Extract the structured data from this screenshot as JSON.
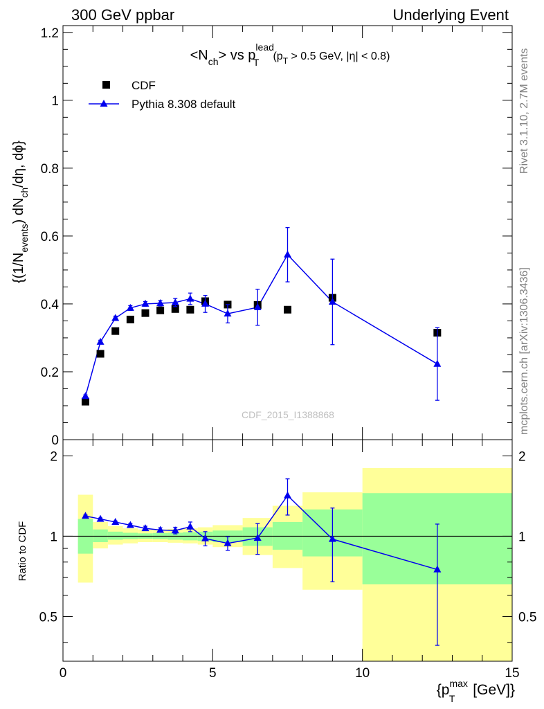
{
  "header": {
    "left_title": "300 GeV ppbar",
    "right_title": "Underlying Event"
  },
  "side_text": {
    "rivet": "Rivet 3.1.10,  2.7M events",
    "mcplots": "mcplots.cern.ch [arXiv:1306.3436]"
  },
  "watermark": "CDF_2015_I1388868",
  "chart_data": [
    {
      "type": "scatter",
      "panel": "main",
      "title_parts": {
        "lead": "<N",
        "lead_sub": "ch",
        "mid": "> vs p",
        "mid_sup": "lead",
        "mid_sub": "T",
        "cut_open": "(p",
        "cut_sub": "T",
        "cut_rest": " > 0.5 GeV, |η| < 0.8)"
      },
      "ylabel_parts": {
        "a": "{(1/N",
        "a_sub": "events",
        "b": ") dN",
        "b_sub": "ch",
        "c": "/dη, dϕ}"
      },
      "xlim": [
        0,
        15
      ],
      "ylim": [
        0,
        1.22
      ],
      "y_ticks": [
        0,
        0.2,
        0.4,
        0.6,
        0.8,
        1,
        1.2
      ],
      "y_tick_labels": [
        "0",
        "0.2",
        "0.4",
        "0.6",
        "0.8",
        "1",
        "1.2"
      ],
      "legend": {
        "position": "top-left",
        "entries": [
          "CDF",
          "Pythia 8.308 default"
        ]
      },
      "series": [
        {
          "name": "CDF",
          "marker": "square",
          "color": "#000000",
          "x": [
            0.75,
            1.25,
            1.75,
            2.25,
            2.75,
            3.25,
            3.75,
            4.25,
            4.75,
            5.5,
            6.5,
            7.5,
            9.0,
            12.5
          ],
          "y": [
            0.112,
            0.253,
            0.32,
            0.354,
            0.373,
            0.381,
            0.385,
            0.383,
            0.408,
            0.398,
            0.397,
            0.383,
            0.418,
            0.315
          ],
          "yerr": [
            0.003,
            0.004,
            0.005,
            0.005,
            0.005,
            0.005,
            0.005,
            0.005,
            0.006,
            0.006,
            0.007,
            0.008,
            0.01,
            0.015
          ]
        },
        {
          "name": "Pythia 8.308 default",
          "marker": "triangle",
          "color": "#0000ee",
          "x": [
            0.75,
            1.25,
            1.75,
            2.25,
            2.75,
            3.25,
            3.75,
            4.25,
            4.75,
            5.5,
            6.5,
            7.5,
            9.0,
            12.5
          ],
          "y": [
            0.128,
            0.288,
            0.358,
            0.388,
            0.4,
            0.402,
            0.404,
            0.415,
            0.4,
            0.371,
            0.39,
            0.545,
            0.406,
            0.223
          ],
          "yerr": [
            0.004,
            0.005,
            0.006,
            0.007,
            0.007,
            0.008,
            0.012,
            0.017,
            0.025,
            0.027,
            0.053,
            0.08,
            0.126,
            0.107
          ]
        }
      ]
    },
    {
      "type": "line",
      "panel": "ratio",
      "ylabel": "Ratio to CDF",
      "xlabel_parts": {
        "a": "{p",
        "sup": "max",
        "sub": "T",
        "b": " [GeV]}"
      },
      "xlim": [
        0,
        15
      ],
      "ylim": [
        0.34,
        2.3
      ],
      "y_ticks": [
        0.5,
        1,
        2
      ],
      "y_tick_labels": [
        "0.5",
        "1",
        "2"
      ],
      "x_ticks": [
        0,
        5,
        10,
        15
      ],
      "x_tick_labels": [
        "0",
        "5",
        "10",
        "15"
      ],
      "reference_line": 1,
      "bands": {
        "outer_color": "#ffff99",
        "inner_color": "#99ff99",
        "bins": [
          {
            "lo": 0.5,
            "hi": 1.0,
            "outer": [
              0.67,
              1.43
            ],
            "inner": [
              0.86,
              1.16
            ]
          },
          {
            "lo": 1.0,
            "hi": 1.5,
            "outer": [
              0.9,
              1.13
            ],
            "inner": [
              0.95,
              1.06
            ]
          },
          {
            "lo": 1.5,
            "hi": 2.0,
            "outer": [
              0.93,
              1.09
            ],
            "inner": [
              0.97,
              1.04
            ]
          },
          {
            "lo": 2.0,
            "hi": 2.5,
            "outer": [
              0.94,
              1.07
            ],
            "inner": [
              0.975,
              1.03
            ]
          },
          {
            "lo": 2.5,
            "hi": 3.0,
            "outer": [
              0.95,
              1.06
            ],
            "inner": [
              0.978,
              1.025
            ]
          },
          {
            "lo": 3.0,
            "hi": 3.5,
            "outer": [
              0.95,
              1.06
            ],
            "inner": [
              0.975,
              1.028
            ]
          },
          {
            "lo": 3.5,
            "hi": 4.0,
            "outer": [
              0.945,
              1.065
            ],
            "inner": [
              0.97,
              1.03
            ]
          },
          {
            "lo": 4.0,
            "hi": 4.5,
            "outer": [
              0.94,
              1.07
            ],
            "inner": [
              0.965,
              1.035
            ]
          },
          {
            "lo": 4.5,
            "hi": 5.0,
            "outer": [
              0.93,
              1.08
            ],
            "inner": [
              0.96,
              1.04
            ]
          },
          {
            "lo": 5.0,
            "hi": 6.0,
            "outer": [
              0.91,
              1.1
            ],
            "inner": [
              0.95,
              1.05
            ]
          },
          {
            "lo": 6.0,
            "hi": 7.0,
            "outer": [
              0.85,
              1.17
            ],
            "inner": [
              0.92,
              1.08
            ]
          },
          {
            "lo": 7.0,
            "hi": 8.0,
            "outer": [
              0.76,
              1.3
            ],
            "inner": [
              0.89,
              1.13
            ]
          },
          {
            "lo": 8.0,
            "hi": 10.0,
            "outer": [
              0.63,
              1.46
            ],
            "inner": [
              0.84,
              1.26
            ]
          },
          {
            "lo": 10.0,
            "hi": 15.0,
            "outer": [
              0.34,
              1.8
            ],
            "inner": [
              0.66,
              1.45
            ]
          }
        ]
      },
      "series": [
        {
          "name": "Pythia 8.308 default",
          "color": "#0000ee",
          "x": [
            0.75,
            1.25,
            1.75,
            2.25,
            2.75,
            3.25,
            3.75,
            4.25,
            4.75,
            5.5,
            6.5,
            7.5,
            9.0,
            12.5
          ],
          "y": [
            1.19,
            1.16,
            1.13,
            1.1,
            1.07,
            1.055,
            1.05,
            1.085,
            0.98,
            0.94,
            0.985,
            1.42,
            0.975,
            0.75
          ],
          "yerr": [
            0.01,
            0.01,
            0.01,
            0.015,
            0.02,
            0.02,
            0.03,
            0.045,
            0.06,
            0.055,
            0.13,
            0.22,
            0.3,
            0.36
          ]
        }
      ]
    }
  ]
}
